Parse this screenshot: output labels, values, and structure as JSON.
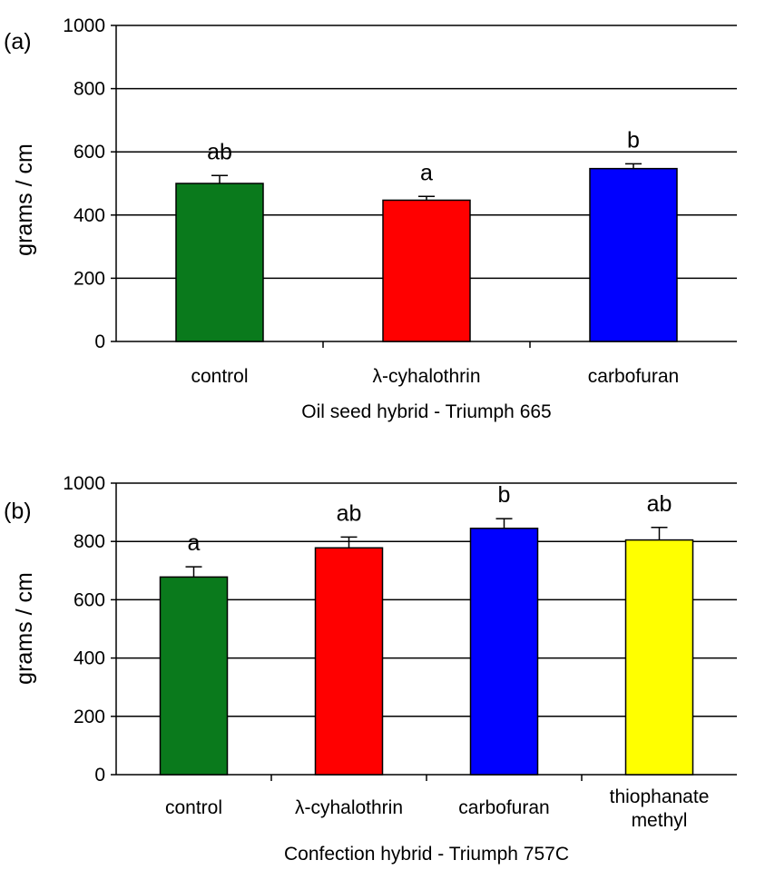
{
  "chart_data": [
    {
      "type": "bar",
      "panel_label": "(a)",
      "categories": [
        "control",
        "λ-cyhalothrin",
        "carbofuran"
      ],
      "values": [
        500,
        447,
        547
      ],
      "errors": [
        25,
        12,
        15
      ],
      "significance": [
        "ab",
        "a",
        "b"
      ],
      "colors": [
        "#0a7a1c",
        "#ff0000",
        "#0000ff"
      ],
      "xlabel": "Oil seed hybrid - Triumph 665",
      "ylabel": "grams / cm",
      "ylim": [
        0,
        1000
      ],
      "yticks": [
        0,
        200,
        400,
        600,
        800,
        1000
      ],
      "grid": true
    },
    {
      "type": "bar",
      "panel_label": "(b)",
      "categories": [
        "control",
        "λ-cyhalothrin",
        "carbofuran",
        "thiophanate methyl"
      ],
      "values": [
        678,
        778,
        845,
        805
      ],
      "errors": [
        35,
        37,
        33,
        43
      ],
      "significance": [
        "a",
        "ab",
        "b",
        "ab"
      ],
      "colors": [
        "#0a7a1c",
        "#ff0000",
        "#0000ff",
        "#ffff00"
      ],
      "xlabel": "Confection hybrid - Triumph 757C",
      "ylabel": "grams / cm",
      "ylim": [
        0,
        1000
      ],
      "yticks": [
        0,
        200,
        400,
        600,
        800,
        1000
      ],
      "grid": true
    }
  ]
}
